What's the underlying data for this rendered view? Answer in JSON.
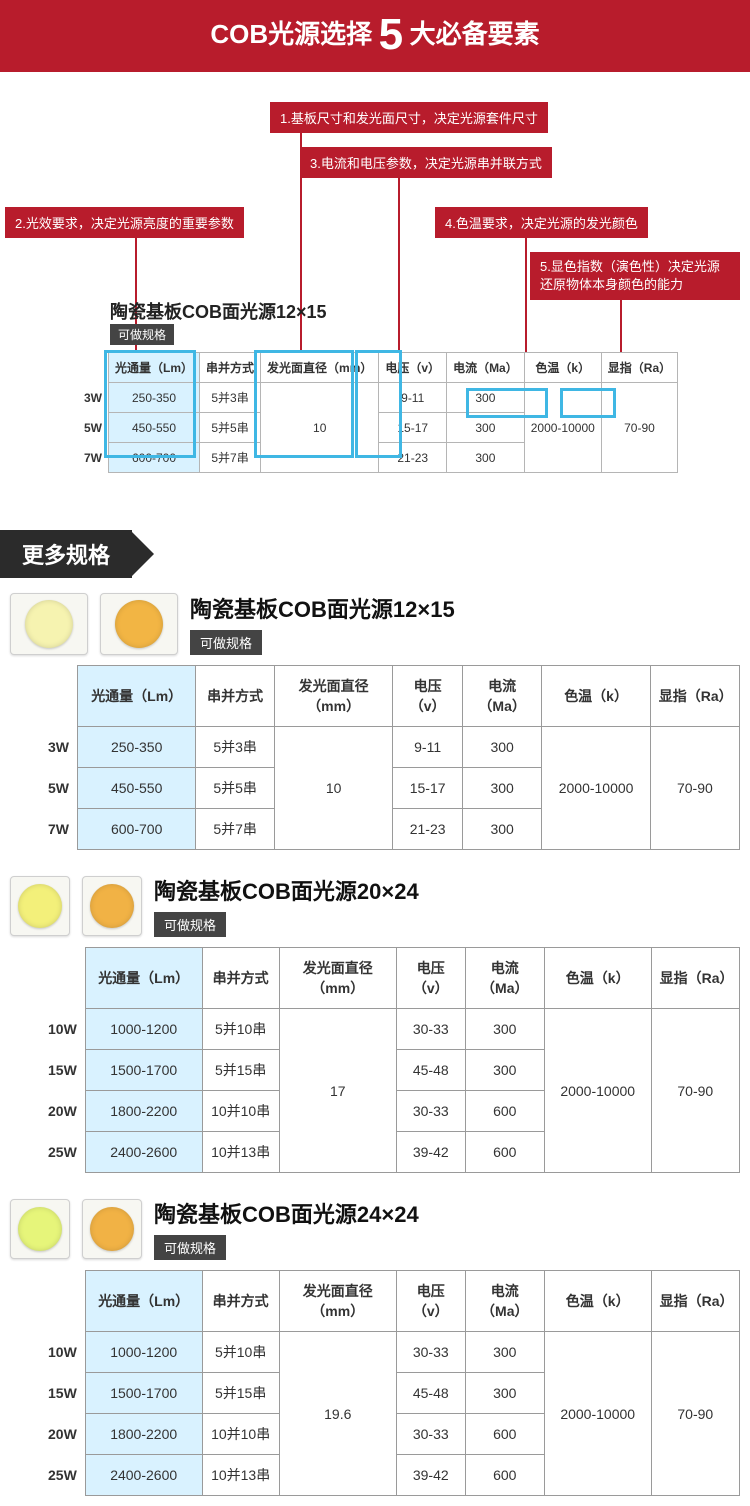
{
  "banner": {
    "pre": "COB光源选择",
    "big": "5",
    "post": "大必备要素"
  },
  "callouts": {
    "c1": "1.基板尺寸和发光面尺寸，决定光源套件尺寸",
    "c2": "2.光效要求，决定光源亮度的重要参数",
    "c3": "3.电流和电压参数，决定光源串并联方式",
    "c4": "4.色温要求，决定光源的发光颜色",
    "c5a": "5.显色指数（演色性）决定光源",
    "c5b": "还原物体本身颜色的能力"
  },
  "mini": {
    "title": "陶瓷基板COB面光源12×15",
    "badge": "可做规格",
    "headers": [
      "光通量（Lm）",
      "串并方式",
      "发光面直径（mm）",
      "电压（v）",
      "电流（Ma）",
      "色温（k）",
      "显指（Ra）"
    ],
    "row_labels": [
      "3W",
      "5W",
      "7W"
    ],
    "rows": [
      [
        "250-350",
        "5并3串",
        "",
        "9-11",
        "300",
        "",
        ""
      ],
      [
        "450-550",
        "5并5串",
        "10",
        "15-17",
        "300",
        "2000-10000",
        "70-90"
      ],
      [
        "600-700",
        "5并7串",
        "",
        "21-23",
        "300",
        "",
        ""
      ]
    ],
    "highlight_color": "#3fb7e4",
    "callout_bg": "#b81c2c",
    "table_border": "#b5b5b5",
    "hl_bg": "#d9f2ff"
  },
  "section_header": "更多规格",
  "products": [
    {
      "title": "陶瓷基板COB面光源12×15",
      "badge": "可做规格",
      "chip_colors": [
        "#f6f3b0",
        "#f2b544"
      ],
      "chip_shape": "rect",
      "headers": [
        "光通量（Lm）",
        "串并方式",
        "发光面直径（mm）",
        "电压（v）",
        "电流（Ma）",
        "色温（k）",
        "显指（Ra）"
      ],
      "row_labels": [
        "3W",
        "5W",
        "7W"
      ],
      "diameter": "10",
      "ct": "2000-10000",
      "ra": "70-90",
      "rows": [
        {
          "lm": "250-350",
          "mode": "5并3串",
          "v": "9-11",
          "ma": "300"
        },
        {
          "lm": "450-550",
          "mode": "5并5串",
          "v": "15-17",
          "ma": "300"
        },
        {
          "lm": "600-700",
          "mode": "5并7串",
          "v": "21-23",
          "ma": "300"
        }
      ]
    },
    {
      "title": "陶瓷基板COB面光源20×24",
      "badge": "可做规格",
      "chip_colors": [
        "#f3f07a",
        "#f1b245"
      ],
      "chip_shape": "square",
      "headers": [
        "光通量（Lm）",
        "串并方式",
        "发光面直径（mm）",
        "电压（v）",
        "电流（Ma）",
        "色温（k）",
        "显指（Ra）"
      ],
      "row_labels": [
        "10W",
        "15W",
        "20W",
        "25W"
      ],
      "diameter": "17",
      "ct": "2000-10000",
      "ra": "70-90",
      "rows": [
        {
          "lm": "1000-1200",
          "mode": "5并10串",
          "v": "30-33",
          "ma": "300"
        },
        {
          "lm": "1500-1700",
          "mode": "5并15串",
          "v": "45-48",
          "ma": "300"
        },
        {
          "lm": "1800-2200",
          "mode": "10并10串",
          "v": "30-33",
          "ma": "600"
        },
        {
          "lm": "2400-2600",
          "mode": "10并13串",
          "v": "39-42",
          "ma": "600"
        }
      ]
    },
    {
      "title": "陶瓷基板COB面光源24×24",
      "badge": "可做规格",
      "chip_colors": [
        "#e6f57a",
        "#f1b245"
      ],
      "chip_shape": "square",
      "headers": [
        "光通量（Lm）",
        "串并方式",
        "发光面直径（mm）",
        "电压（v）",
        "电流（Ma）",
        "色温（k）",
        "显指（Ra）"
      ],
      "row_labels": [
        "10W",
        "15W",
        "20W",
        "25W"
      ],
      "diameter": "19.6",
      "ct": "2000-10000",
      "ra": "70-90",
      "rows": [
        {
          "lm": "1000-1200",
          "mode": "5并10串",
          "v": "30-33",
          "ma": "300"
        },
        {
          "lm": "1500-1700",
          "mode": "5并15串",
          "v": "45-48",
          "ma": "300"
        },
        {
          "lm": "1800-2200",
          "mode": "10并10串",
          "v": "30-33",
          "ma": "600"
        },
        {
          "lm": "2400-2600",
          "mode": "10并13串",
          "v": "39-42",
          "ma": "600"
        }
      ]
    }
  ],
  "colors": {
    "brand_red": "#b81c2c",
    "dark": "#2b2b2b",
    "border": "#9a9a9a",
    "hl_bg": "#d9f2ff",
    "hl_border": "#3fb7e4"
  }
}
